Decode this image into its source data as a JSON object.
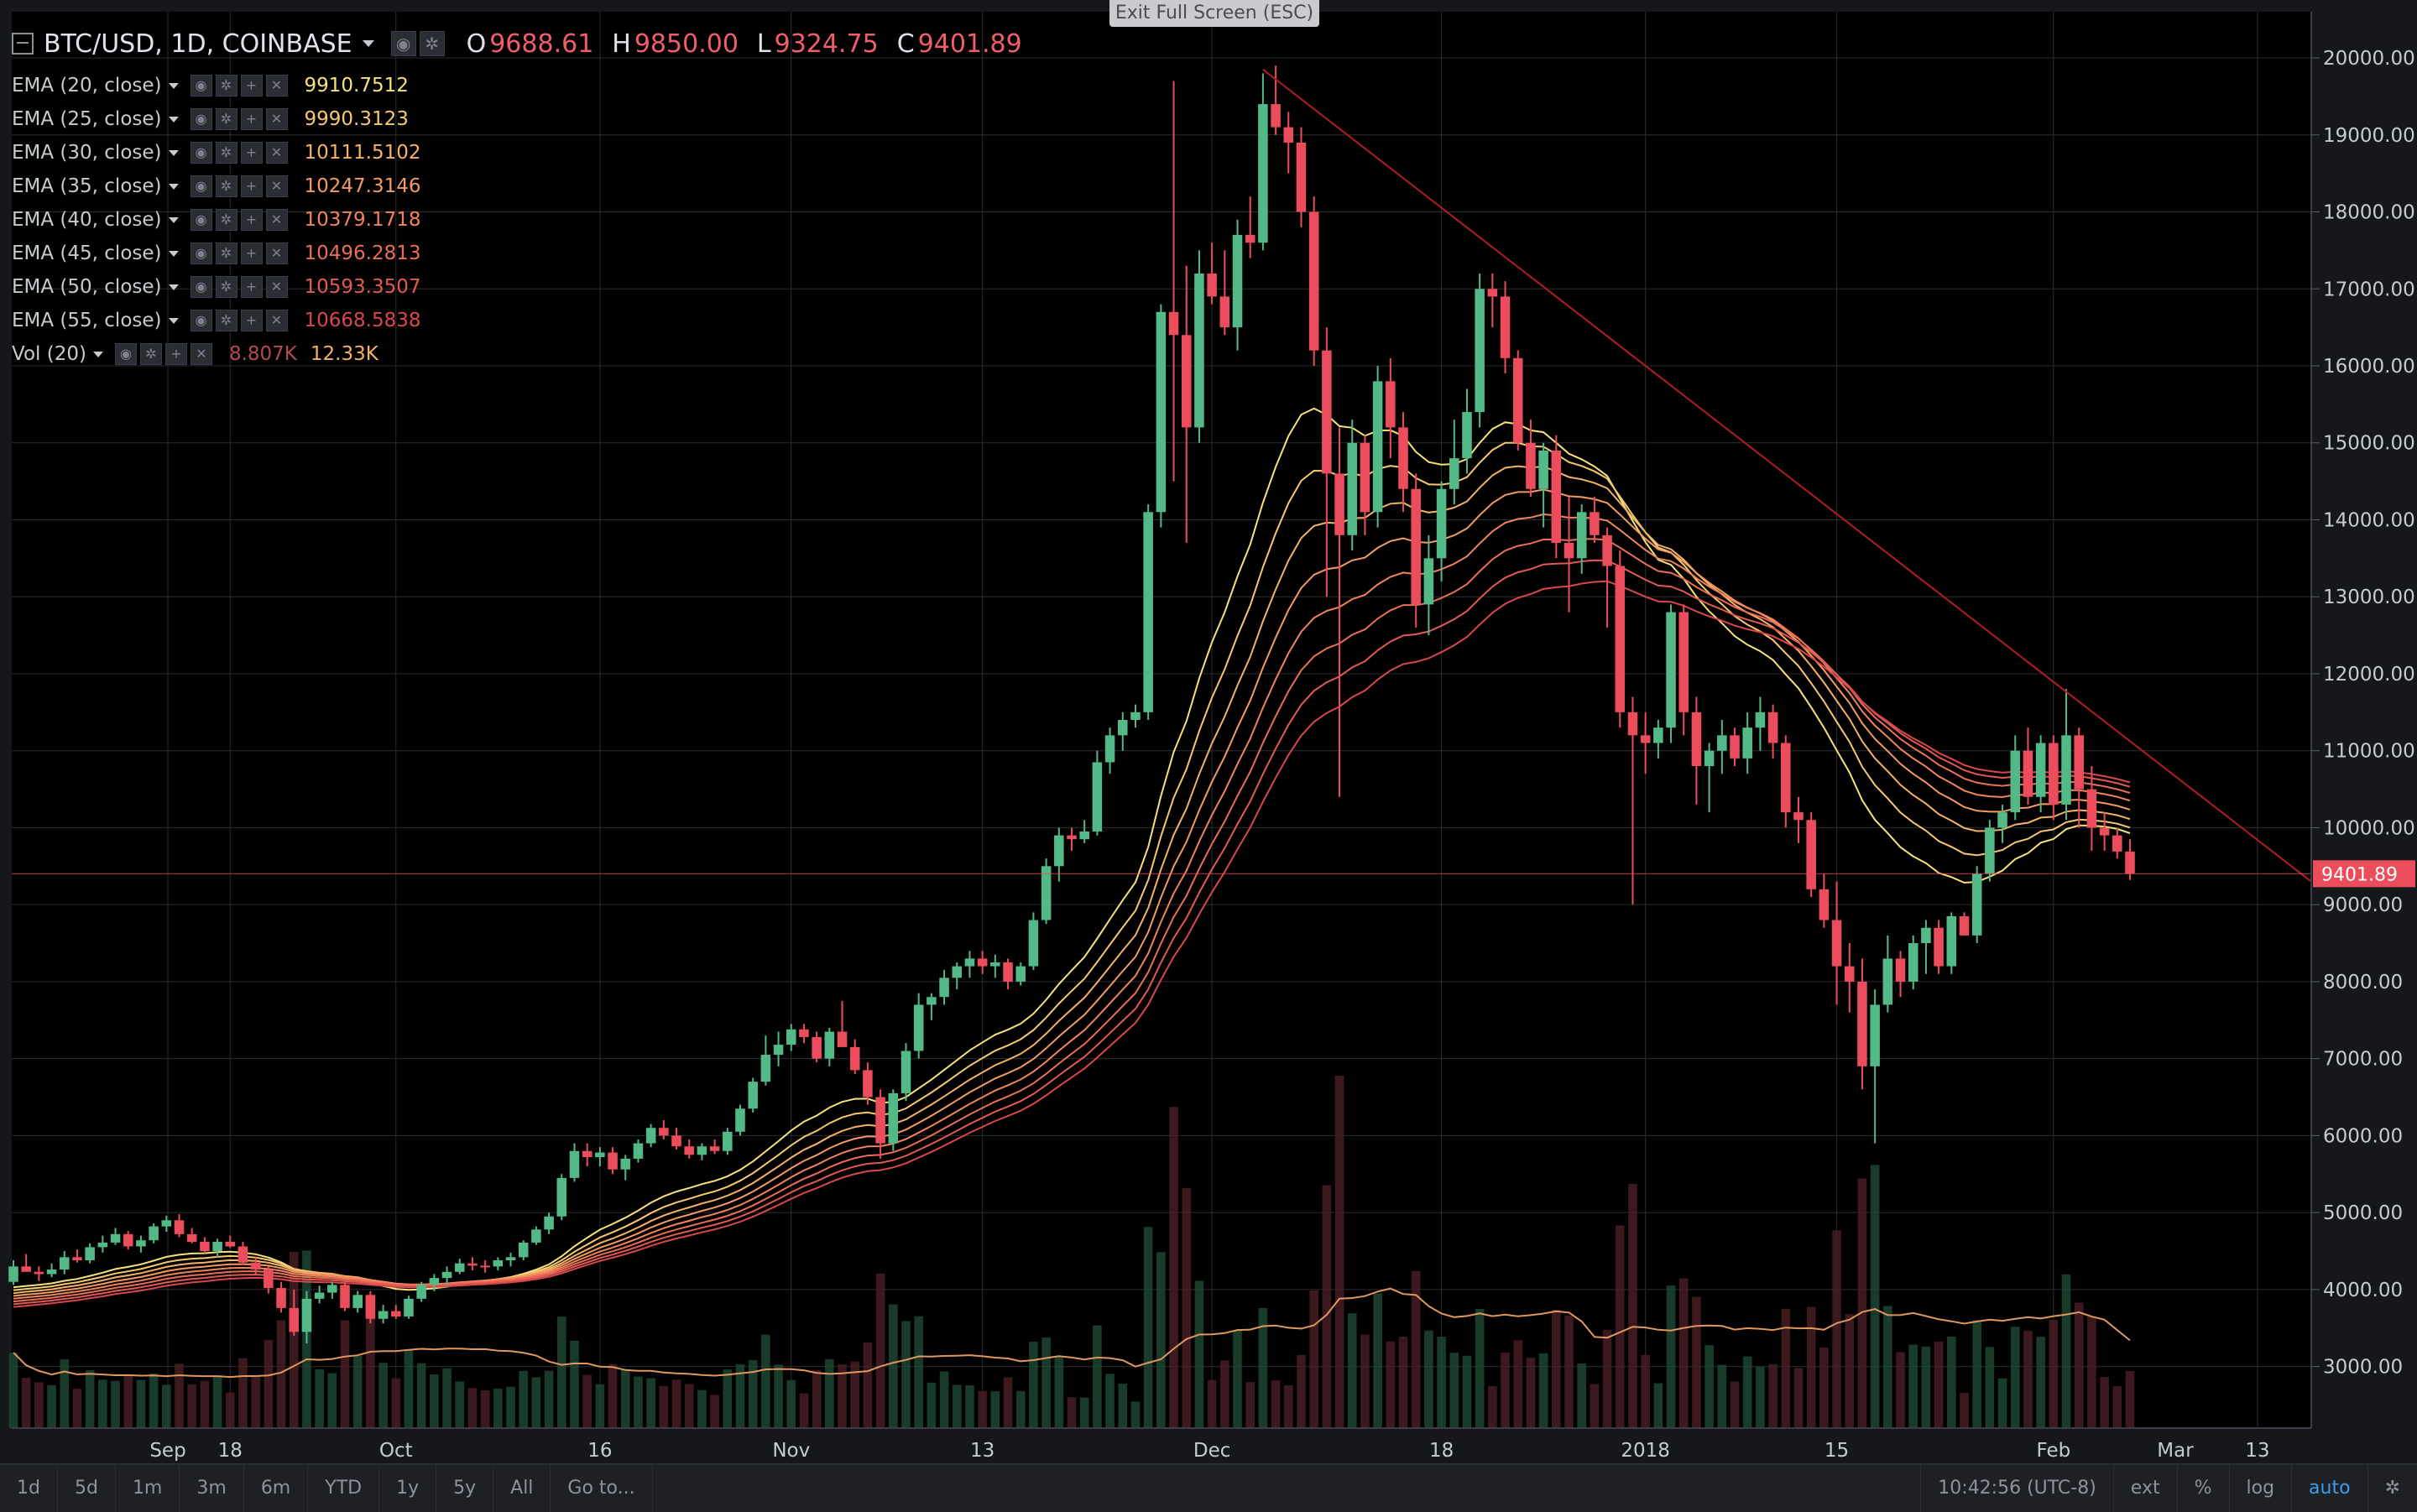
{
  "window": {
    "exit_fullscreen_label": "Exit Full Screen (ESC)"
  },
  "symbol": {
    "title": "BTC/USD, 1D, COINBASE",
    "open_label": "O",
    "open": "9688.61",
    "high_label": "H",
    "high": "9850.00",
    "low_label": "L",
    "low": "9324.75",
    "close_label": "C",
    "close": "9401.89"
  },
  "studies": [
    {
      "label": "EMA (20, close)",
      "value": "9910.7512",
      "color": "#f5e27a"
    },
    {
      "label": "EMA (25, close)",
      "value": "9990.3123",
      "color": "#f6c970"
    },
    {
      "label": "EMA (30, close)",
      "value": "10111.5102",
      "color": "#f5b267"
    },
    {
      "label": "EMA (35, close)",
      "value": "10247.3146",
      "color": "#f49b62"
    },
    {
      "label": "EMA (40, close)",
      "value": "10379.1718",
      "color": "#f0855c"
    },
    {
      "label": "EMA (45, close)",
      "value": "10496.2813",
      "color": "#ea6f57"
    },
    {
      "label": "EMA (50, close)",
      "value": "10593.3507",
      "color": "#e25a52"
    },
    {
      "label": "EMA (55, close)",
      "value": "10668.5838",
      "color": "#d8474c"
    }
  ],
  "volume_study": {
    "label": "Vol (20)",
    "value1": "8.807K",
    "value2": "12.33K",
    "color1": "#b24a4f",
    "color2": "#f5b267"
  },
  "chart_data": {
    "type": "candlestick",
    "price_axis": {
      "ticks": [
        "20000.00",
        "19000.00",
        "18000.00",
        "17000.00",
        "16000.00",
        "15000.00",
        "14000.00",
        "13000.00",
        "12000.00",
        "11000.00",
        "10000.00",
        "9000.00",
        "8000.00",
        "7000.00",
        "6000.00",
        "5000.00",
        "4000.00",
        "3000.00"
      ],
      "range": [
        2200,
        20600
      ]
    },
    "current_price": {
      "value": 9401.89,
      "label": "9401.89"
    },
    "time_axis": {
      "ticks": [
        "Sep",
        "18",
        "Oct",
        "16",
        "Nov",
        "13",
        "Dec",
        "18",
        "2018",
        "15",
        "Feb",
        "13",
        "Mar"
      ]
    },
    "colors": {
      "up": "#53b987",
      "down": "#eb4d5c",
      "grid": "#2a2d33",
      "trendline": "#b11d26"
    },
    "candles": [
      [
        4100,
        4380,
        4060,
        4300
      ],
      [
        4300,
        4460,
        4250,
        4230
      ],
      [
        4230,
        4300,
        4110,
        4200
      ],
      [
        4200,
        4340,
        4160,
        4260
      ],
      [
        4260,
        4500,
        4200,
        4420
      ],
      [
        4420,
        4520,
        4350,
        4380
      ],
      [
        4380,
        4600,
        4340,
        4550
      ],
      [
        4550,
        4700,
        4480,
        4610
      ],
      [
        4610,
        4800,
        4580,
        4720
      ],
      [
        4720,
        4760,
        4520,
        4560
      ],
      [
        4560,
        4700,
        4480,
        4640
      ],
      [
        4640,
        4860,
        4600,
        4820
      ],
      [
        4820,
        4960,
        4750,
        4900
      ],
      [
        4900,
        4980,
        4680,
        4720
      ],
      [
        4720,
        4800,
        4600,
        4620
      ],
      [
        4620,
        4680,
        4470,
        4500
      ],
      [
        4500,
        4660,
        4420,
        4620
      ],
      [
        4620,
        4700,
        4540,
        4560
      ],
      [
        4560,
        4620,
        4320,
        4350
      ],
      [
        4350,
        4420,
        4200,
        4260
      ],
      [
        4260,
        4300,
        3950,
        4020
      ],
      [
        4020,
        4100,
        3700,
        3760
      ],
      [
        3760,
        4000,
        3400,
        3450
      ],
      [
        3450,
        3980,
        3300,
        3880
      ],
      [
        3880,
        4050,
        3820,
        3960
      ],
      [
        3960,
        4100,
        3880,
        4060
      ],
      [
        4060,
        4120,
        3720,
        3760
      ],
      [
        3760,
        3980,
        3700,
        3930
      ],
      [
        3930,
        3980,
        3560,
        3620
      ],
      [
        3620,
        3800,
        3560,
        3720
      ],
      [
        3720,
        3800,
        3620,
        3650
      ],
      [
        3650,
        3920,
        3620,
        3880
      ],
      [
        3880,
        4100,
        3840,
        4060
      ],
      [
        4060,
        4200,
        3980,
        4150
      ],
      [
        4150,
        4300,
        4050,
        4230
      ],
      [
        4230,
        4400,
        4200,
        4340
      ],
      [
        4340,
        4420,
        4250,
        4310
      ],
      [
        4310,
        4380,
        4220,
        4300
      ],
      [
        4300,
        4420,
        4250,
        4380
      ],
      [
        4380,
        4480,
        4300,
        4420
      ],
      [
        4420,
        4640,
        4380,
        4610
      ],
      [
        4610,
        4820,
        4580,
        4780
      ],
      [
        4780,
        5000,
        4720,
        4950
      ],
      [
        4950,
        5500,
        4900,
        5450
      ],
      [
        5450,
        5900,
        5400,
        5800
      ],
      [
        5800,
        5900,
        5600,
        5720
      ],
      [
        5720,
        5850,
        5600,
        5780
      ],
      [
        5780,
        5850,
        5500,
        5560
      ],
      [
        5560,
        5750,
        5420,
        5700
      ],
      [
        5700,
        5950,
        5650,
        5900
      ],
      [
        5900,
        6150,
        5850,
        6100
      ],
      [
        6100,
        6200,
        5950,
        6000
      ],
      [
        6000,
        6100,
        5820,
        5860
      ],
      [
        5860,
        5950,
        5700,
        5750
      ],
      [
        5750,
        5900,
        5680,
        5860
      ],
      [
        5860,
        5950,
        5760,
        5800
      ],
      [
        5800,
        6100,
        5750,
        6050
      ],
      [
        6050,
        6400,
        6000,
        6350
      ],
      [
        6350,
        6750,
        6300,
        6700
      ],
      [
        6700,
        7300,
        6650,
        7050
      ],
      [
        7050,
        7350,
        6900,
        7180
      ],
      [
        7180,
        7450,
        7100,
        7380
      ],
      [
        7380,
        7450,
        7200,
        7280
      ],
      [
        7280,
        7350,
        6950,
        7000
      ],
      [
        7000,
        7400,
        6900,
        7350
      ],
      [
        7350,
        7750,
        7300,
        7150
      ],
      [
        7150,
        7250,
        6800,
        6850
      ],
      [
        6850,
        6950,
        6400,
        6500
      ],
      [
        6500,
        6600,
        5700,
        5900
      ],
      [
        5900,
        6600,
        5800,
        6550
      ],
      [
        6550,
        7200,
        6450,
        7100
      ],
      [
        7100,
        7850,
        7000,
        7700
      ],
      [
        7700,
        7850,
        7500,
        7800
      ],
      [
        7800,
        8150,
        7700,
        8050
      ],
      [
        8050,
        8250,
        7900,
        8200
      ],
      [
        8200,
        8400,
        8050,
        8300
      ],
      [
        8300,
        8400,
        8100,
        8200
      ],
      [
        8200,
        8350,
        8050,
        8250
      ],
      [
        8250,
        8300,
        7900,
        8000
      ],
      [
        8000,
        8250,
        7950,
        8200
      ],
      [
        8200,
        8900,
        8150,
        8800
      ],
      [
        8800,
        9600,
        8750,
        9500
      ],
      [
        9500,
        10000,
        9300,
        9900
      ],
      [
        9900,
        10000,
        9700,
        9850
      ],
      [
        9850,
        10100,
        9800,
        9950
      ],
      [
        9950,
        11000,
        9900,
        10850
      ],
      [
        10850,
        11300,
        10700,
        11200
      ],
      [
        11200,
        11500,
        11000,
        11400
      ],
      [
        11400,
        11600,
        11300,
        11500
      ],
      [
        11500,
        14200,
        11400,
        14100
      ],
      [
        14100,
        16800,
        13900,
        16700
      ],
      [
        16700,
        19700,
        14500,
        16400
      ],
      [
        16400,
        17300,
        13700,
        15200
      ],
      [
        15200,
        17500,
        15000,
        17200
      ],
      [
        17200,
        17600,
        16800,
        16900
      ],
      [
        16900,
        17500,
        16400,
        16500
      ],
      [
        16500,
        17900,
        16200,
        17700
      ],
      [
        17700,
        18200,
        17400,
        17600
      ],
      [
        17600,
        19800,
        17500,
        19400
      ],
      [
        19400,
        19900,
        19000,
        19100
      ],
      [
        19100,
        19300,
        18500,
        18900
      ],
      [
        18900,
        19100,
        17800,
        18000
      ],
      [
        18000,
        18200,
        16000,
        16200
      ],
      [
        16200,
        16500,
        13000,
        14600
      ],
      [
        14600,
        15200,
        10400,
        13800
      ],
      [
        13800,
        15300,
        13600,
        15000
      ],
      [
        15000,
        15100,
        13800,
        14100
      ],
      [
        14100,
        16000,
        13900,
        15800
      ],
      [
        15800,
        16100,
        14800,
        15200
      ],
      [
        15200,
        15400,
        14100,
        14400
      ],
      [
        14400,
        14600,
        12600,
        12900
      ],
      [
        12900,
        13800,
        12500,
        13500
      ],
      [
        13500,
        14500,
        13200,
        14400
      ],
      [
        14400,
        15300,
        14200,
        14800
      ],
      [
        14800,
        15700,
        14600,
        15400
      ],
      [
        15400,
        17200,
        15200,
        17000
      ],
      [
        17000,
        17200,
        16500,
        16900
      ],
      [
        16900,
        17100,
        15900,
        16100
      ],
      [
        16100,
        16200,
        14900,
        15000
      ],
      [
        15000,
        15300,
        14300,
        14400
      ],
      [
        14400,
        15000,
        13900,
        14900
      ],
      [
        14900,
        15100,
        13500,
        13700
      ],
      [
        13700,
        14300,
        12800,
        13500
      ],
      [
        13500,
        14200,
        13300,
        14100
      ],
      [
        14100,
        14300,
        13700,
        13800
      ],
      [
        13800,
        13900,
        12600,
        13400
      ],
      [
        13400,
        13600,
        11300,
        11500
      ],
      [
        11500,
        11700,
        9000,
        11200
      ],
      [
        11200,
        11500,
        10700,
        11100
      ],
      [
        11100,
        11400,
        10900,
        11300
      ],
      [
        11300,
        12900,
        11100,
        12800
      ],
      [
        12800,
        12900,
        11200,
        11500
      ],
      [
        11500,
        11700,
        10300,
        10800
      ],
      [
        10800,
        11100,
        10200,
        11000
      ],
      [
        11000,
        11400,
        10700,
        11200
      ],
      [
        11200,
        11300,
        10800,
        10900
      ],
      [
        10900,
        11500,
        10700,
        11300
      ],
      [
        11300,
        11700,
        11000,
        11500
      ],
      [
        11500,
        11600,
        10900,
        11100
      ],
      [
        11100,
        11200,
        10000,
        10200
      ],
      [
        10200,
        10400,
        9800,
        10100
      ],
      [
        10100,
        10200,
        9100,
        9200
      ],
      [
        9200,
        9400,
        8700,
        8800
      ],
      [
        8800,
        9300,
        7700,
        8200
      ],
      [
        8200,
        8500,
        7600,
        8000
      ],
      [
        8000,
        8300,
        6600,
        6900
      ],
      [
        6900,
        7900,
        5900,
        7700
      ],
      [
        7700,
        8600,
        7600,
        8300
      ],
      [
        8300,
        8400,
        7800,
        8000
      ],
      [
        8000,
        8600,
        7900,
        8500
      ],
      [
        8500,
        8800,
        8100,
        8700
      ],
      [
        8700,
        8800,
        8100,
        8200
      ],
      [
        8200,
        8900,
        8100,
        8850
      ],
      [
        8850,
        8900,
        8600,
        8600
      ],
      [
        8600,
        9500,
        8500,
        9400
      ],
      [
        9400,
        10100,
        9300,
        10000
      ],
      [
        10000,
        10300,
        9800,
        10200
      ],
      [
        10200,
        11200,
        10100,
        11000
      ],
      [
        11000,
        11300,
        10300,
        10400
      ],
      [
        10400,
        11200,
        10200,
        11100
      ],
      [
        11100,
        11200,
        10100,
        10300
      ],
      [
        10300,
        11800,
        10100,
        11200
      ],
      [
        11200,
        11300,
        10000,
        10500
      ],
      [
        10500,
        10800,
        9700,
        10000
      ],
      [
        10000,
        10200,
        9700,
        9900
      ],
      [
        9900,
        10000,
        9600,
        9690
      ],
      [
        9690,
        9850,
        9320,
        9400
      ]
    ],
    "ema_last": [
      9910.75,
      9990.31,
      10111.51,
      10247.31,
      10379.17,
      10496.28,
      10593.35,
      10668.58
    ]
  },
  "time_frames": [
    "1d",
    "5d",
    "1m",
    "3m",
    "6m",
    "YTD",
    "1y",
    "5y",
    "All",
    "Go to..."
  ],
  "status_bar": {
    "clock": "10:42:56 (UTC-8)",
    "ext": "ext",
    "percent": "%",
    "log": "log",
    "auto": "auto"
  }
}
